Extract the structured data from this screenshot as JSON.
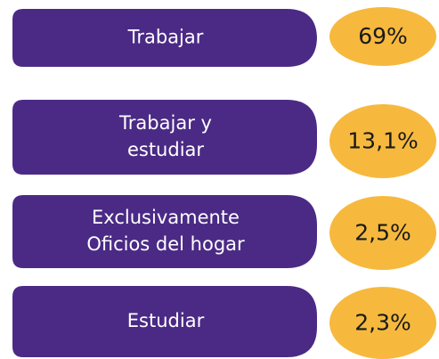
{
  "items": [
    {
      "label": [
        "Trabajar"
      ],
      "value": "69%"
    },
    {
      "label": [
        "Trabajar y",
        "estudiar"
      ],
      "value": "13,1%"
    },
    {
      "label": [
        "Exclusivamente",
        "Oficios del hogar"
      ],
      "value": "2,5%"
    },
    {
      "label": [
        "Estudiar"
      ],
      "value": "2,3%"
    }
  ]
}
